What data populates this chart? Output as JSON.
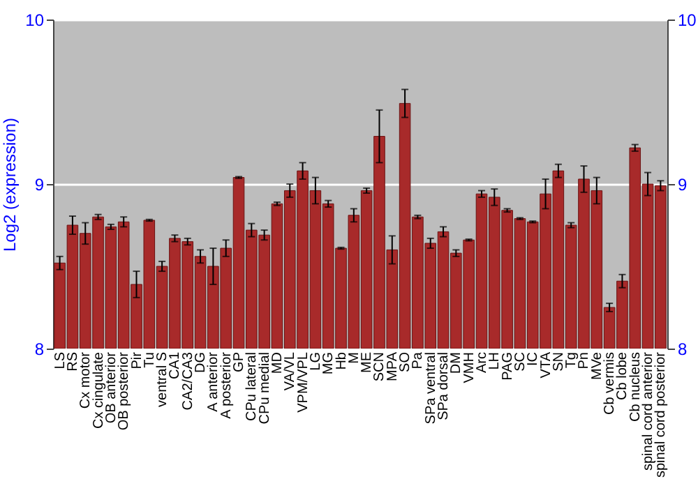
{
  "chart_data": {
    "type": "bar",
    "ylabel": "Log2 (expression)",
    "categories": [
      "LS",
      "RS",
      "Cx motor",
      "Cx cingulate",
      "OB anterior",
      "OB posterior",
      "Pir",
      "Tu",
      "ventral S",
      "CA1",
      "CA2/CA3",
      "DG",
      "A anterior",
      "A posterior",
      "GP",
      "CPu lateral",
      "CPu medial",
      "MD",
      "VA/VL",
      "VPM/VPL",
      "LG",
      "MG",
      "Hb",
      "M",
      "ME",
      "SCN",
      "MPA",
      "SO",
      "Pa",
      "SPa ventral",
      "SPa dorsal",
      "DM",
      "VMH",
      "Arc",
      "LH",
      "PAG",
      "SC",
      "IC",
      "VTA",
      "SN",
      "Tg",
      "Pn",
      "MVe",
      "Cb vermis",
      "Cb lobe",
      "Cb nucleus",
      "spinal cord anterior",
      "spinal cord posterior"
    ],
    "values": [
      8.52,
      8.75,
      8.7,
      8.8,
      8.74,
      8.77,
      8.39,
      8.78,
      8.5,
      8.67,
      8.65,
      8.56,
      8.5,
      8.61,
      9.04,
      8.72,
      8.69,
      8.88,
      8.96,
      9.08,
      8.96,
      8.88,
      8.61,
      8.81,
      8.96,
      9.29,
      8.6,
      9.49,
      8.8,
      8.64,
      8.71,
      8.58,
      8.66,
      8.94,
      8.92,
      8.84,
      8.79,
      8.77,
      8.94,
      9.08,
      8.75,
      9.03,
      8.96,
      8.25,
      8.41,
      9.22,
      9.0,
      8.99
    ],
    "errors": [
      0.04,
      0.055,
      0.065,
      0.015,
      0.015,
      0.03,
      0.08,
      0.005,
      0.03,
      0.02,
      0.02,
      0.04,
      0.11,
      0.05,
      0.005,
      0.04,
      0.03,
      0.01,
      0.04,
      0.05,
      0.08,
      0.02,
      0.005,
      0.04,
      0.015,
      0.16,
      0.085,
      0.085,
      0.01,
      0.03,
      0.03,
      0.02,
      0.005,
      0.02,
      0.05,
      0.01,
      0.005,
      0.005,
      0.09,
      0.04,
      0.015,
      0.08,
      0.08,
      0.025,
      0.04,
      0.02,
      0.07,
      0.03
    ],
    "color": "#a82a2a",
    "ylim": [
      8,
      10
    ],
    "yticks": [
      8,
      9,
      10
    ],
    "y2lim": [
      8,
      10
    ],
    "y2ticks": [
      8,
      9,
      10
    ],
    "grid": "y"
  }
}
